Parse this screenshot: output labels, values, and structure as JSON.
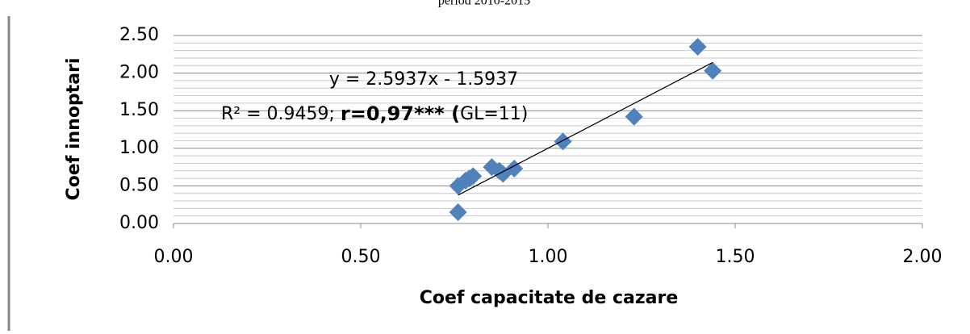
{
  "chart_data": {
    "type": "scatter",
    "title": "period 2010-2015",
    "x_label": "Coef capacitate de cazare",
    "y_label": "Coef innoptari",
    "x": [
      1.4,
      1.44,
      1.23,
      1.04,
      0.85,
      0.88,
      0.91,
      0.8,
      0.78,
      0.76,
      0.76,
      0.87,
      0.79
    ],
    "series": [
      {
        "name": "Coef innoptari",
        "color": "#4f81bd",
        "values": [
          2.35,
          2.03,
          1.42,
          1.09,
          0.75,
          0.66,
          0.73,
          0.63,
          0.57,
          0.5,
          0.15,
          0.7,
          0.6
        ]
      }
    ],
    "xlim": [
      0,
      2
    ],
    "ylim": [
      0,
      2.5
    ],
    "xticks": [
      {
        "value": 0,
        "label": "0.00"
      },
      {
        "value": 0.5,
        "label": "0.50"
      },
      {
        "value": 1,
        "label": "1.00"
      },
      {
        "value": 1.5,
        "label": "1.50"
      },
      {
        "value": 2,
        "label": "2.00"
      }
    ],
    "yticks": [
      {
        "value": 0,
        "label": "0.00"
      },
      {
        "value": 0.5,
        "label": "0.50"
      },
      {
        "value": 1,
        "label": "1.00"
      },
      {
        "value": 1.5,
        "label": "1.50"
      },
      {
        "value": 2,
        "label": "2.00"
      },
      {
        "value": 2.5,
        "label": "2.50"
      }
    ],
    "minor_yticks": [
      0.1,
      0.2,
      0.3,
      0.4,
      0.6,
      0.7,
      0.8,
      0.9,
      1.1,
      1.2,
      1.3,
      1.4,
      1.6,
      1.7,
      1.8,
      1.9,
      2.1,
      2.2,
      2.3,
      2.4
    ],
    "grid": true,
    "trendline": {
      "slope": 2.5937,
      "intercept": -1.5937,
      "color": "#000000"
    },
    "annotations": [
      "y = 2.5937x - 1.5937",
      {
        "parts": [
          "R² = 0.9459; ",
          "r=0,97*** (",
          "GL=11)"
        ]
      }
    ]
  }
}
